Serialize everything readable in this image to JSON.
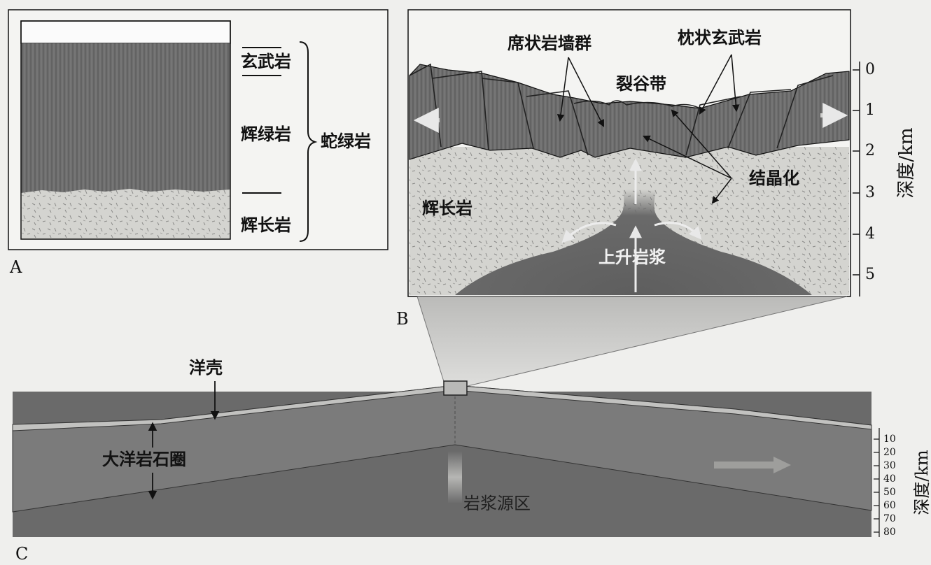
{
  "panels": {
    "a": "A",
    "b": "B",
    "c": "C"
  },
  "panel_a": {
    "layers": {
      "basalt": "玄武岩",
      "diabase": "辉绿岩",
      "gabbro": "辉长岩"
    },
    "group": "蛇绿岩"
  },
  "panel_b": {
    "labels": {
      "sheeted_dikes": "席状岩墙群",
      "pillow_basalt": "枕状玄武岩",
      "rift_zone": "裂谷带",
      "crystallization": "结晶化",
      "gabbro": "辉长岩",
      "rising_magma": "上升岩浆"
    },
    "depth_axis": {
      "title": "深度/km",
      "ticks": [
        "0",
        "1",
        "2",
        "3",
        "4",
        "5"
      ]
    }
  },
  "panel_c": {
    "labels": {
      "oceanic_crust": "洋壳",
      "oceanic_lithosphere": "大洋岩石圈",
      "magma_source": "岩浆源区"
    },
    "depth_axis": {
      "title": "深度/km",
      "ticks": [
        "10",
        "20",
        "30",
        "40",
        "50",
        "60",
        "70",
        "80"
      ]
    }
  },
  "colors": {
    "paper": "#efefed",
    "basalt": "#6f6f6f",
    "gabbro": "#d3d3cf",
    "lithosphere": "#7b7b7b",
    "asthenosphere": "#6a6a6a"
  }
}
